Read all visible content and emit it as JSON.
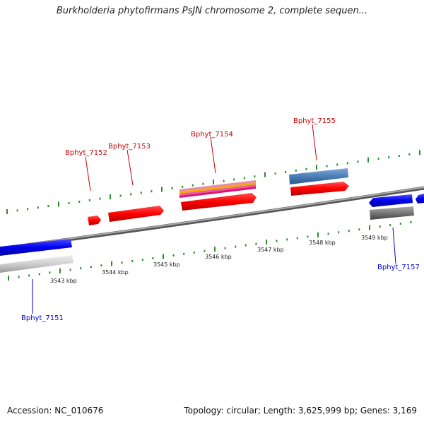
{
  "title": "Burkholderia phytofirmans PsJN chromosome 2, complete sequen...",
  "footer": {
    "accession": "Accession: NC_010676",
    "summary": "Topology: circular; Length: 3,625,999 bp; Genes: 3,169"
  },
  "genes": [
    {
      "id": "Bphyt_7151",
      "color": "#0000cc"
    },
    {
      "id": "Bphyt_7152",
      "color": "#cc0000"
    },
    {
      "id": "Bphyt_7153",
      "color": "#cc0000"
    },
    {
      "id": "Bphyt_7154",
      "color": "#cc0000"
    },
    {
      "id": "Bphyt_7155",
      "color": "#cc0000"
    },
    {
      "id": "Bphyt_7157",
      "color": "#0000cc"
    }
  ],
  "ticks": [
    "3543 kbp",
    "3544 kbp",
    "3545 kbp",
    "3546 kbp",
    "3547 kbp",
    "3548 kbp",
    "3549 kbp"
  ]
}
